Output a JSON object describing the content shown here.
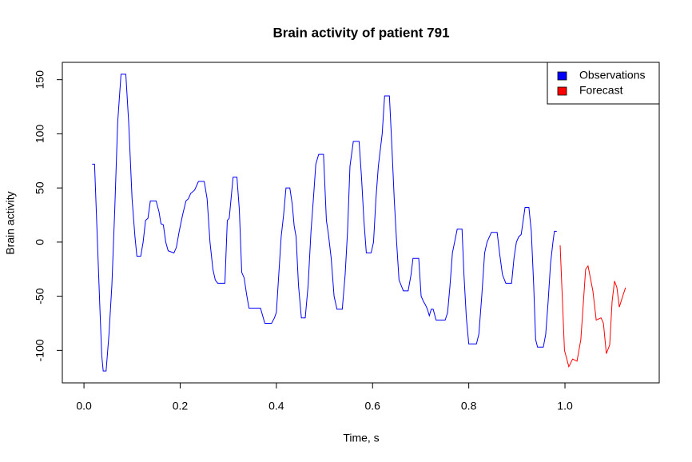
{
  "chart_data": {
    "type": "line",
    "title": "Brain activity of patient 791",
    "x_label": "Time, s",
    "y_label": "Brain activity",
    "xlim": [
      -0.045,
      1.196
    ],
    "ylim": [
      -130,
      166
    ],
    "xticks": [
      {
        "value": 0,
        "label": "0.0"
      },
      0.2,
      0.4,
      0.6,
      0.8,
      {
        "value": 1,
        "label": "1.0"
      }
    ],
    "yticks": [
      -100,
      -50,
      0,
      50,
      100,
      150
    ],
    "legend": "top-right",
    "series": [
      {
        "name": "Observations",
        "color": "#0000ff",
        "x": [
          0.017,
          0.022,
          0.028,
          0.033,
          0.037,
          0.04,
          0.046,
          0.052,
          0.058,
          0.064,
          0.07,
          0.077,
          0.087,
          0.093,
          0.1,
          0.106,
          0.11,
          0.118,
          0.123,
          0.128,
          0.133,
          0.138,
          0.15,
          0.156,
          0.16,
          0.165,
          0.17,
          0.175,
          0.187,
          0.192,
          0.198,
          0.205,
          0.212,
          0.217,
          0.222,
          0.23,
          0.238,
          0.25,
          0.256,
          0.262,
          0.268,
          0.273,
          0.278,
          0.293,
          0.298,
          0.302,
          0.31,
          0.318,
          0.323,
          0.328,
          0.333,
          0.338,
          0.343,
          0.367,
          0.376,
          0.39,
          0.396,
          0.4,
          0.405,
          0.41,
          0.415,
          0.42,
          0.428,
          0.433,
          0.437,
          0.441,
          0.446,
          0.452,
          0.46,
          0.466,
          0.472,
          0.477,
          0.482,
          0.488,
          0.498,
          0.504,
          0.508,
          0.514,
          0.52,
          0.526,
          0.537,
          0.543,
          0.548,
          0.553,
          0.56,
          0.572,
          0.577,
          0.582,
          0.587,
          0.597,
          0.602,
          0.607,
          0.612,
          0.62,
          0.625,
          0.635,
          0.64,
          0.645,
          0.65,
          0.655,
          0.664,
          0.674,
          0.68,
          0.684,
          0.696,
          0.701,
          0.706,
          0.71,
          0.714,
          0.718,
          0.722,
          0.726,
          0.732,
          0.751,
          0.756,
          0.761,
          0.766,
          0.776,
          0.786,
          0.79,
          0.795,
          0.8,
          0.816,
          0.821,
          0.827,
          0.833,
          0.838,
          0.847,
          0.859,
          0.864,
          0.87,
          0.877,
          0.889,
          0.894,
          0.899,
          0.904,
          0.909,
          0.917,
          0.925,
          0.93,
          0.935,
          0.939,
          0.943,
          0.955,
          0.96,
          0.965,
          0.97,
          0.975,
          0.978,
          0.983
        ],
        "values": [
          72,
          72,
          0,
          -60,
          -105,
          -119,
          -119,
          -85,
          -40,
          30,
          110,
          155,
          155,
          110,
          40,
          5,
          -13,
          -13,
          0,
          20,
          22,
          38,
          38,
          28,
          17,
          16,
          0,
          -8,
          -10,
          -5,
          10,
          25,
          38,
          40,
          45,
          48,
          56,
          56,
          40,
          0,
          -25,
          -35,
          -38,
          -38,
          20,
          22,
          60,
          60,
          30,
          -28,
          -33,
          -48,
          -61,
          -61,
          -75,
          -75,
          -70,
          -65,
          -30,
          5,
          25,
          50,
          50,
          35,
          15,
          5,
          -40,
          -70,
          -70,
          -40,
          10,
          40,
          72,
          81,
          81,
          20,
          8,
          -15,
          -50,
          -62,
          -62,
          -30,
          10,
          70,
          93,
          93,
          60,
          20,
          -10,
          -10,
          0,
          40,
          70,
          100,
          135,
          135,
          90,
          40,
          0,
          -35,
          -45,
          -45,
          -30,
          -15,
          -15,
          -50,
          -55,
          -58,
          -62,
          -68,
          -62,
          -62,
          -72,
          -72,
          -65,
          -40,
          -10,
          12,
          12,
          -30,
          -70,
          -94,
          -94,
          -85,
          -50,
          -10,
          0,
          9,
          9,
          -10,
          -30,
          -38,
          -38,
          -15,
          0,
          5,
          7,
          32,
          32,
          10,
          -40,
          -90,
          -97,
          -97,
          -85,
          -55,
          -20,
          0,
          10,
          10
        ]
      },
      {
        "name": "Forecast",
        "color": "#ff0000",
        "x": [
          0.99,
          0.999,
          1.008,
          1.016,
          1.025,
          1.033,
          1.043,
          1.048,
          1.058,
          1.065,
          1.075,
          1.08,
          1.086,
          1.093,
          1.098,
          1.103,
          1.108,
          1.113,
          1.12,
          1.126
        ],
        "values": [
          -3,
          -100,
          -115,
          -108,
          -110,
          -90,
          -25,
          -22,
          -45,
          -72,
          -70,
          -75,
          -103,
          -95,
          -55,
          -36,
          -42,
          -60,
          -50,
          -42
        ]
      }
    ]
  }
}
